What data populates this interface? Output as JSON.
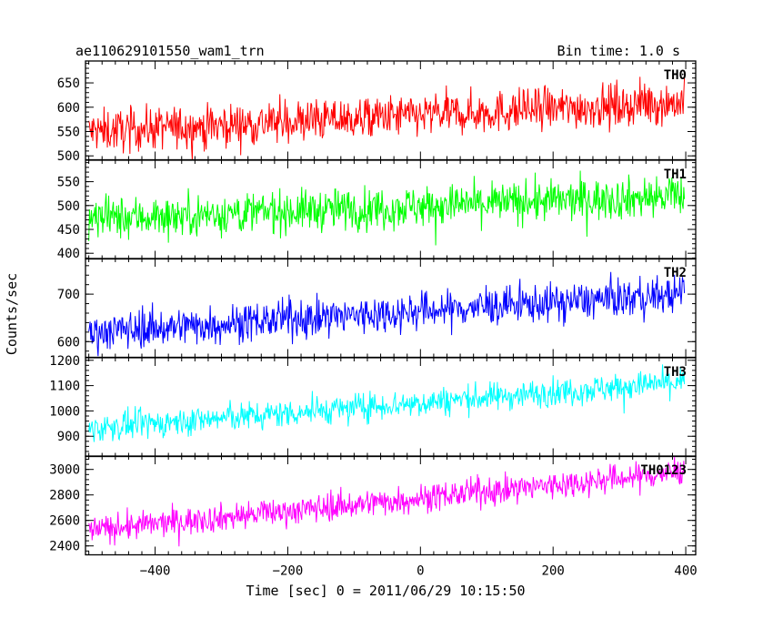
{
  "header": {
    "title": "ae110629101550_wam1_trn",
    "bin_time": "Bin time: 1.0 s"
  },
  "chart_data": {
    "type": "line",
    "xlabel": "Time [sec] 0 = 2011/06/29 10:15:50",
    "ylabel": "Counts/sec",
    "xlim": [
      -505,
      415
    ],
    "x_range": [
      -500,
      398
    ],
    "xticks": [
      -400,
      -200,
      0,
      200,
      400
    ],
    "xtick_labels": [
      "−400",
      "−200",
      "0",
      "200",
      "400"
    ],
    "grid": false,
    "panels": [
      {
        "name": "TH0",
        "color": "#ff0000",
        "ylim": [
          492,
          695
        ],
        "yticks": [
          500,
          550,
          600,
          650
        ],
        "trend": [
          550,
          610
        ],
        "noise": 22
      },
      {
        "name": "TH1",
        "color": "#00ff00",
        "ylim": [
          388,
          595
        ],
        "yticks": [
          400,
          450,
          500,
          550
        ],
        "trend": [
          472,
          520
        ],
        "noise": 22
      },
      {
        "name": "TH2",
        "color": "#0000ff",
        "ylim": [
          567,
          775
        ],
        "yticks": [
          600,
          700
        ],
        "trend": [
          620,
          700
        ],
        "noise": 20
      },
      {
        "name": "TH3",
        "color": "#00ffff",
        "ylim": [
          820,
          1210
        ],
        "yticks": [
          900,
          1000,
          1100,
          1200
        ],
        "trend": [
          930,
          1115
        ],
        "noise": 28
      },
      {
        "name": "TH0123",
        "color": "#ff00ff",
        "ylim": [
          2330,
          3105
        ],
        "yticks": [
          2400,
          2600,
          2800,
          3000
        ],
        "trend": [
          2520,
          2980
        ],
        "noise": 55
      }
    ]
  }
}
